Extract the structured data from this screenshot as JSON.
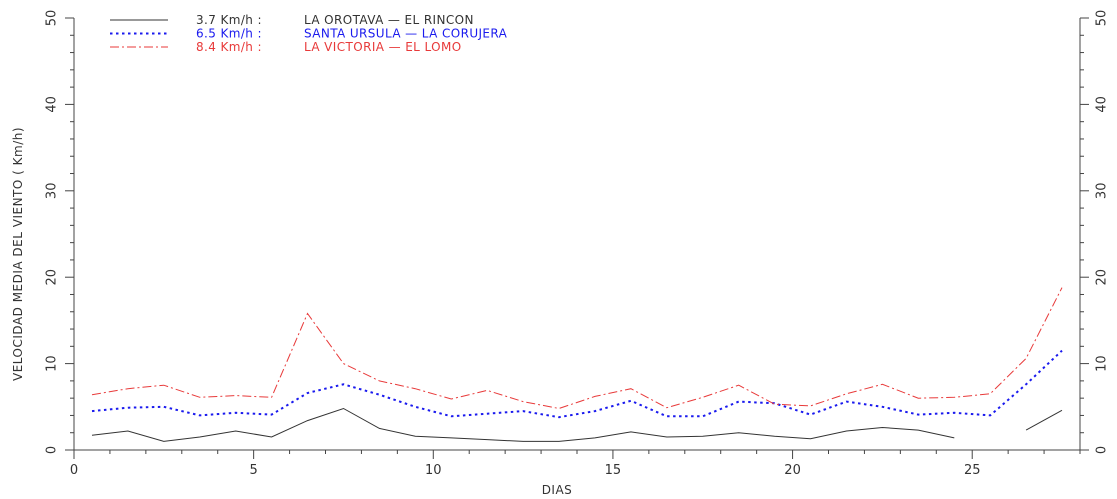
{
  "chart_data": {
    "type": "line",
    "xlabel": "DIAS",
    "ylabel": "VELOCIDAD MEDIA DEL VIENTO ( Km/h)",
    "xlim": [
      0,
      28
    ],
    "ylim": [
      0,
      50
    ],
    "xticks": [
      0,
      5,
      10,
      15,
      20,
      25
    ],
    "yticks": [
      0,
      10,
      20,
      30,
      40,
      50
    ],
    "grid": false,
    "legend_position": "top-left",
    "series": [
      {
        "name": "LA OROTAVA — EL RINCON",
        "legend_value": "3.7 Km/h :",
        "legend_label": "LA OROTAVA — EL RINCON",
        "color": "#333333",
        "dash": "solid",
        "points": [
          [
            0.5,
            1.7
          ],
          [
            1.5,
            2.2
          ],
          [
            2.5,
            1.0
          ],
          [
            3.5,
            1.5
          ],
          [
            4.5,
            2.2
          ],
          [
            5.5,
            1.5
          ],
          [
            6.5,
            3.4
          ],
          [
            7.5,
            4.8
          ],
          [
            8.5,
            2.5
          ],
          [
            9.5,
            1.6
          ],
          [
            10.5,
            1.4
          ],
          [
            11.5,
            1.2
          ],
          [
            12.5,
            1.0
          ],
          [
            13.5,
            1.0
          ],
          [
            14.5,
            1.4
          ],
          [
            15.5,
            2.1
          ],
          [
            16.5,
            1.5
          ],
          [
            17.5,
            1.6
          ],
          [
            18.5,
            2.0
          ],
          [
            19.5,
            1.6
          ],
          [
            20.5,
            1.3
          ],
          [
            21.5,
            2.2
          ],
          [
            22.5,
            2.6
          ],
          [
            23.5,
            2.3
          ],
          [
            24.5,
            1.4
          ],
          null,
          [
            26.5,
            2.3
          ],
          [
            27.5,
            4.6
          ]
        ]
      },
      {
        "name": "SANTA URSULA — LA CORUJERA",
        "legend_value": "6.5 Km/h :",
        "legend_label": "SANTA URSULA — LA CORUJERA",
        "color": "#1a1aee",
        "dash": "dotted",
        "points": [
          [
            0.5,
            4.5
          ],
          [
            1.5,
            4.9
          ],
          [
            2.5,
            5.0
          ],
          [
            3.5,
            4.0
          ],
          [
            4.5,
            4.3
          ],
          [
            5.5,
            4.1
          ],
          [
            6.5,
            6.6
          ],
          [
            7.5,
            7.6
          ],
          [
            8.5,
            6.4
          ],
          [
            9.5,
            5.0
          ],
          [
            10.5,
            3.9
          ],
          [
            11.5,
            4.2
          ],
          [
            12.5,
            4.5
          ],
          [
            13.5,
            3.8
          ],
          [
            14.5,
            4.5
          ],
          [
            15.5,
            5.7
          ],
          [
            16.5,
            3.9
          ],
          [
            17.5,
            3.9
          ],
          [
            18.5,
            5.6
          ],
          [
            19.5,
            5.4
          ],
          [
            20.5,
            4.1
          ],
          [
            21.5,
            5.6
          ],
          [
            22.5,
            5.0
          ],
          [
            23.5,
            4.1
          ],
          [
            24.5,
            4.3
          ],
          [
            25.5,
            4.0
          ],
          [
            26.5,
            7.6
          ],
          [
            27.5,
            11.5
          ]
        ]
      },
      {
        "name": "LA VICTORIA — EL LOMO",
        "legend_value": "8.4 Km/h :",
        "legend_label": "LA VICTORIA — EL LOMO",
        "color": "#e83a3a",
        "dash": "dashdot",
        "points": [
          [
            0.5,
            6.4
          ],
          [
            1.5,
            7.1
          ],
          [
            2.5,
            7.5
          ],
          [
            3.5,
            6.1
          ],
          [
            4.5,
            6.3
          ],
          [
            5.5,
            6.1
          ],
          [
            6.5,
            15.8
          ],
          [
            7.5,
            10.0
          ],
          [
            8.5,
            8.0
          ],
          [
            9.5,
            7.1
          ],
          [
            10.5,
            5.9
          ],
          [
            11.5,
            6.9
          ],
          [
            12.5,
            5.6
          ],
          [
            13.5,
            4.8
          ],
          [
            14.5,
            6.2
          ],
          [
            15.5,
            7.1
          ],
          [
            16.5,
            4.9
          ],
          [
            17.5,
            6.1
          ],
          [
            18.5,
            7.5
          ],
          [
            19.5,
            5.3
          ],
          [
            20.5,
            5.1
          ],
          [
            21.5,
            6.5
          ],
          [
            22.5,
            7.6
          ],
          [
            23.5,
            6.0
          ],
          [
            24.5,
            6.1
          ],
          [
            25.5,
            6.5
          ],
          [
            26.5,
            10.6
          ],
          [
            27.5,
            18.8
          ]
        ]
      }
    ]
  }
}
